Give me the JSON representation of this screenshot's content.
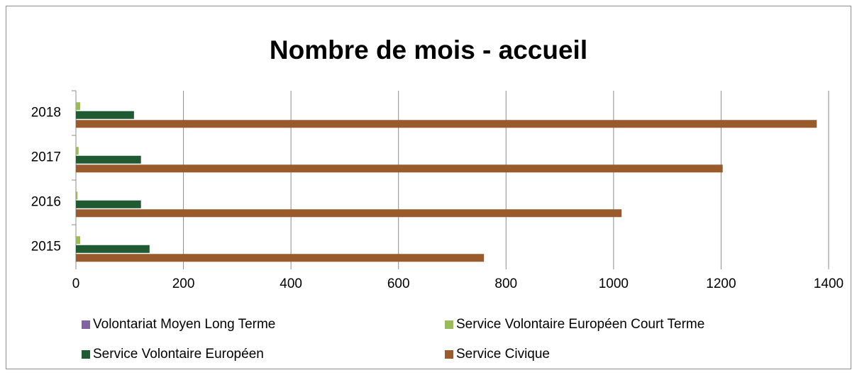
{
  "chart_data": {
    "type": "hbar",
    "title": "Nombre de mois - accueil",
    "categories": [
      "2015",
      "2016",
      "2017",
      "2018"
    ],
    "series": [
      {
        "name": "Volontariat Moyen Long Terme",
        "color": "#8064a2",
        "values": [
          0,
          0,
          0,
          0
        ]
      },
      {
        "name": "Service Volontaire Européen Court Terme",
        "color": "#9bbb59",
        "values": [
          8,
          3,
          5,
          8
        ]
      },
      {
        "name": "Service Volontaire Européen",
        "color": "#1f5a32",
        "values": [
          137,
          121,
          121,
          108
        ]
      },
      {
        "name": "Service Civique",
        "color": "#9a5b2c",
        "values": [
          759,
          1015,
          1203,
          1378
        ]
      }
    ],
    "xlim": [
      0,
      1400
    ],
    "xticks": [
      0,
      200,
      400,
      600,
      800,
      1000,
      1200,
      1400
    ],
    "grid": true
  }
}
